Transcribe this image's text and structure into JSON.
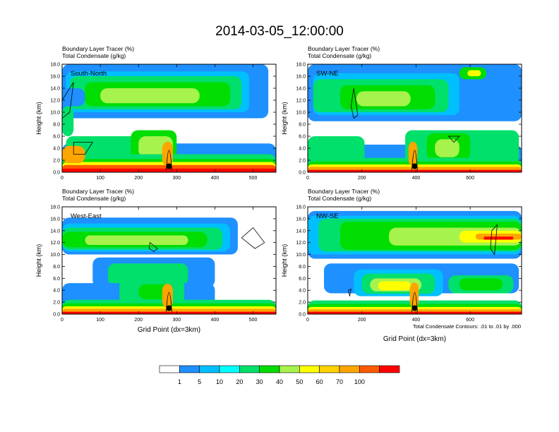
{
  "title": "2014-03-05_12:00:00",
  "panel_label_line1": "Boundary Layer Tracer   (%)",
  "panel_label_line2": "Total Condensate   (g/kg)",
  "footnote": "Total Condensate Contours: .01 to .01 by .000",
  "colorbar": {
    "colors": [
      "#ffffff",
      "#1e90ff",
      "#00bfff",
      "#00ffff",
      "#00e06a",
      "#00dd00",
      "#a6f34d",
      "#ffff00",
      "#ffd200",
      "#ffa500",
      "#ff5a00",
      "#ff0000"
    ],
    "labels": [
      "1",
      "5",
      "10",
      "20",
      "30",
      "40",
      "50",
      "60",
      "70",
      "100"
    ]
  },
  "chart_data": [
    {
      "type": "heatmap",
      "name": "South-North",
      "title_line1": "Boundary Layer Tracer   (%)",
      "title_line2": "Total Condensate   (g/kg)",
      "xlabel": "",
      "ylabel": "Height (km)",
      "xlim": [
        0,
        560
      ],
      "ylim": [
        0,
        18
      ],
      "xticks": [
        0,
        100,
        200,
        300,
        400,
        500
      ],
      "yticks": [
        0,
        2,
        4,
        6,
        8,
        10,
        12,
        14,
        16,
        18
      ],
      "ytick_labels": [
        "0.0",
        "2.0",
        "4.0",
        "6.0",
        "8.0",
        "10.0",
        "12.0",
        "14.0",
        "16.0",
        "18.0"
      ],
      "marker_x": 280,
      "marker_z": 1.0
    },
    {
      "type": "heatmap",
      "name": "SW-NE",
      "title_line1": "Boundary Layer Tracer   (%)",
      "title_line2": "Total Condensate   (g/kg)",
      "xlabel": "",
      "ylabel": "Height (km)",
      "xlim": [
        0,
        790
      ],
      "ylim": [
        0,
        18
      ],
      "xticks": [
        0,
        200,
        400,
        600
      ],
      "yticks": [
        0,
        2,
        4,
        6,
        8,
        10,
        12,
        14,
        16,
        18
      ],
      "ytick_labels": [
        "0.0",
        "2.0",
        "4.0",
        "6.0",
        "8.0",
        "10.0",
        "12.0",
        "14.0",
        "16.0",
        "18.0"
      ],
      "marker_x": 395,
      "marker_z": 1.0
    },
    {
      "type": "heatmap",
      "name": "West-East",
      "title_line1": "Boundary Layer Tracer   (%)",
      "title_line2": "Total Condensate   (g/kg)",
      "xlabel": "Grid Point (dx=3km)",
      "ylabel": "Height (km)",
      "xlim": [
        0,
        560
      ],
      "ylim": [
        0,
        18
      ],
      "xticks": [
        0,
        100,
        200,
        300,
        400,
        500
      ],
      "yticks": [
        0,
        2,
        4,
        6,
        8,
        10,
        12,
        14,
        16,
        18
      ],
      "ytick_labels": [
        "0.0",
        "2.0",
        "4.0",
        "6.0",
        "8.0",
        "10.0",
        "12.0",
        "14.0",
        "16.0",
        "18.0"
      ],
      "marker_x": 280,
      "marker_z": 1.0
    },
    {
      "type": "heatmap",
      "name": "NW-SE",
      "title_line1": "Boundary Layer Tracer   (%)",
      "title_line2": "Total Condensate   (g/kg)",
      "xlabel": "Grid Point (dx=3km)",
      "ylabel": "Height (km)",
      "xlim": [
        0,
        790
      ],
      "ylim": [
        0,
        18
      ],
      "xticks": [
        0,
        200,
        400,
        600
      ],
      "yticks": [
        0,
        2,
        4,
        6,
        8,
        10,
        12,
        14,
        16,
        18
      ],
      "ytick_labels": [
        "0.0",
        "2.0",
        "4.0",
        "6.0",
        "8.0",
        "10.0",
        "12.0",
        "14.0",
        "16.0",
        "18.0"
      ],
      "marker_x": 395,
      "marker_z": 1.0
    }
  ]
}
